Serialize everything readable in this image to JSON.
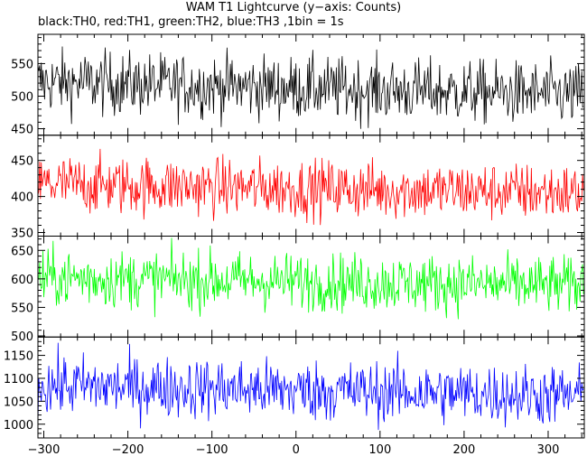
{
  "title": "WAM T1 Lightcurve (y−axis: Counts)",
  "subtitle": "black:TH0, red:TH1, green:TH2, blue:TH3 ,1bin = 1s",
  "chart_data": {
    "type": "line",
    "xlim": [
      -307,
      343
    ],
    "x_ticks": [
      -300,
      -200,
      -100,
      0,
      100,
      200,
      300
    ],
    "x_tick_labels": [
      "−300",
      "−200",
      "−100",
      "0",
      "100",
      "200",
      "300"
    ],
    "bin_seconds": 1,
    "x_start": -307,
    "x_end": 342,
    "grid": false,
    "legend": "in subtitle",
    "panels": [
      {
        "name": "TH0",
        "color": "#000000",
        "ylim": [
          440,
          595
        ],
        "mean_start": 522,
        "mean_end": 502,
        "noise": 24,
        "y_ticks": [
          450,
          500,
          550
        ],
        "y_tick_labels": [
          "450",
          "500",
          "550"
        ]
      },
      {
        "name": "TH1",
        "color": "#ff0000",
        "ylim": [
          345,
          485
        ],
        "mean_start": 417,
        "mean_end": 405,
        "noise": 20,
        "y_ticks": [
          350,
          400,
          450
        ],
        "y_tick_labels": [
          "350",
          "400",
          "450"
        ]
      },
      {
        "name": "TH2",
        "color": "#00ff00",
        "ylim": [
          498,
          675
        ],
        "mean_start": 602,
        "mean_end": 588,
        "noise": 25,
        "y_ticks": [
          500,
          550,
          600,
          650
        ],
        "y_tick_labels": [
          "500",
          "550",
          "600",
          "650"
        ]
      },
      {
        "name": "TH3",
        "color": "#0000ff",
        "ylim": [
          970,
          1190
        ],
        "mean_start": 1085,
        "mean_end": 1062,
        "noise": 33,
        "y_ticks": [
          1000,
          1050,
          1100,
          1150
        ],
        "y_tick_labels": [
          "1000",
          "1050",
          "1100",
          "1150"
        ]
      }
    ]
  }
}
